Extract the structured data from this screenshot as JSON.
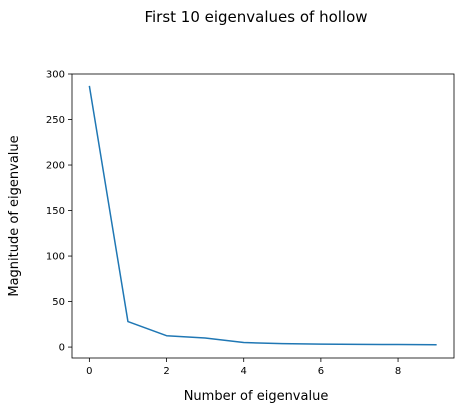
{
  "chart_data": {
    "type": "line",
    "title": "First 10 eigenvalues of hollow",
    "xlabel": "Number of eigenvalue",
    "ylabel": "Magnitude of eigenvalue",
    "x": [
      0,
      1,
      2,
      3,
      4,
      5,
      6,
      7,
      8,
      9
    ],
    "series": [
      {
        "values": [
          287,
          28,
          12.5,
          10,
          5,
          3.8,
          3.3,
          3.0,
          2.8,
          2.6
        ],
        "color": "#1f77b4"
      }
    ],
    "xlim": [
      -0.45,
      9.45
    ],
    "ylim": [
      -12,
      300
    ],
    "xticks": [
      0,
      2,
      4,
      6,
      8
    ],
    "yticks": [
      0,
      50,
      100,
      150,
      200,
      250,
      300
    ],
    "grid": false,
    "legend": "none"
  }
}
